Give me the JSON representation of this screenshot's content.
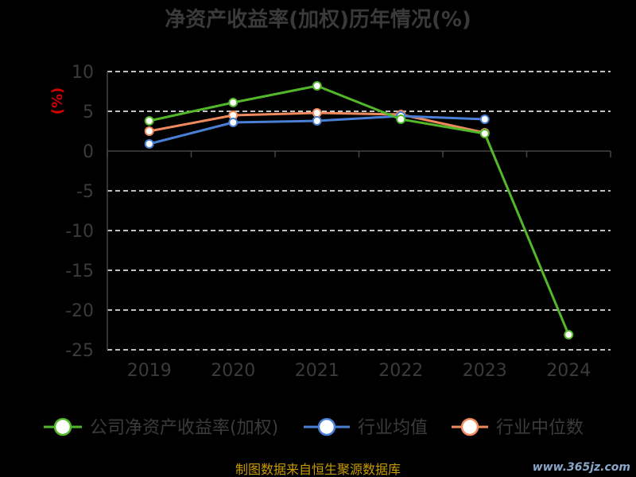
{
  "chart_data": {
    "type": "line",
    "title": "净资产收益率(加权)历年情况(%)",
    "ylabel": "(%)",
    "categories": [
      "2019",
      "2020",
      "2021",
      "2022",
      "2023",
      "2024"
    ],
    "ylim": [
      -25,
      10
    ],
    "yticks": [
      10,
      5,
      0,
      -5,
      -10,
      -15,
      -20,
      -25
    ],
    "ytick_labels": [
      "10",
      "5",
      "0",
      "-5",
      "-10",
      "-15",
      "-20",
      "-25"
    ],
    "grid": true,
    "legend_position": "bottom",
    "series": [
      {
        "name": "公司净资产收益率(加权)",
        "color": "#52b82a",
        "values": [
          3.8,
          6.1,
          8.2,
          4.0,
          2.2,
          -23.1
        ],
        "labels": [
          "",
          "",
          "",
          "",
          "",
          ""
        ]
      },
      {
        "name": "行业均值",
        "color": "#4a7fd6",
        "values": [
          0.9,
          3.6,
          3.8,
          4.4,
          4.0,
          null
        ]
      },
      {
        "name": "行业中位数",
        "color": "#f08a5d",
        "values": [
          2.5,
          4.5,
          4.8,
          4.6,
          2.3,
          null
        ]
      }
    ]
  },
  "footer": {
    "source": "制图数据来自恒生聚源数据库",
    "watermark": "www.365jz.com"
  }
}
